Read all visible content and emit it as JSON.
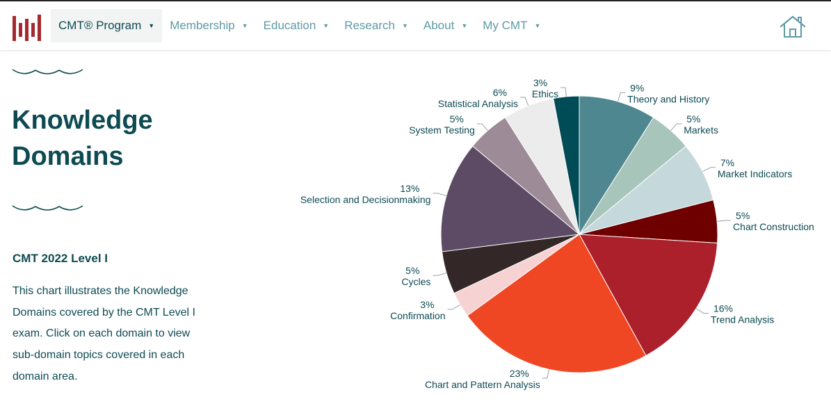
{
  "nav": {
    "items": [
      {
        "label": "CMT® Program"
      },
      {
        "label": "Membership"
      },
      {
        "label": "Education"
      },
      {
        "label": "Research"
      },
      {
        "label": "About"
      },
      {
        "label": "My CMT"
      }
    ],
    "active_color": "#0d4a52",
    "link_color": "#5e9aa3"
  },
  "brand": {
    "logo_icon": "cmt-bars-logo-icon",
    "logo_color": "#a52a2f",
    "home_icon": "home-icon"
  },
  "main": {
    "title_line1": "Knowledge",
    "title_line2": "Domains",
    "subtitle": "CMT 2022 Level I",
    "description": "This chart illustrates the Knowledge Domains covered by the CMT Level I exam. Click on each domain to view sub-domain topics covered in each domain area."
  },
  "chart_data": {
    "type": "pie",
    "title": "",
    "start": "top, clockwise",
    "slices": [
      {
        "label": "Theory and History",
        "pct_label": "9%",
        "value": 9,
        "color": "#4e8790"
      },
      {
        "label": "Markets",
        "pct_label": "5%",
        "value": 5,
        "color": "#a8c5bc"
      },
      {
        "label": "Market Indicators",
        "pct_label": "7%",
        "value": 7,
        "color": "#c5d8dc"
      },
      {
        "label": "Chart Construction",
        "pct_label": "5%",
        "value": 5,
        "color": "#6e0000"
      },
      {
        "label": "Trend Analysis",
        "pct_label": "16%",
        "value": 16,
        "color": "#ab202b"
      },
      {
        "label": "Chart and Pattern Analysis",
        "pct_label": "23%",
        "value": 23,
        "color": "#ef4623"
      },
      {
        "label": "Confirmation",
        "pct_label": "3%",
        "value": 3,
        "color": "#f7d2d2"
      },
      {
        "label": "Cycles",
        "pct_label": "5%",
        "value": 5,
        "color": "#342728"
      },
      {
        "label": "Selection and Decisionmaking",
        "pct_label": "13%",
        "value": 13,
        "color": "#5d4b66"
      },
      {
        "label": "System Testing",
        "pct_label": "5%",
        "value": 5,
        "color": "#9d8b97"
      },
      {
        "label": "Statistical Analysis",
        "pct_label": "6%",
        "value": 6,
        "color": "#ececec"
      },
      {
        "label": "Ethics",
        "pct_label": "3%",
        "value": 3,
        "color": "#004c56"
      }
    ]
  }
}
